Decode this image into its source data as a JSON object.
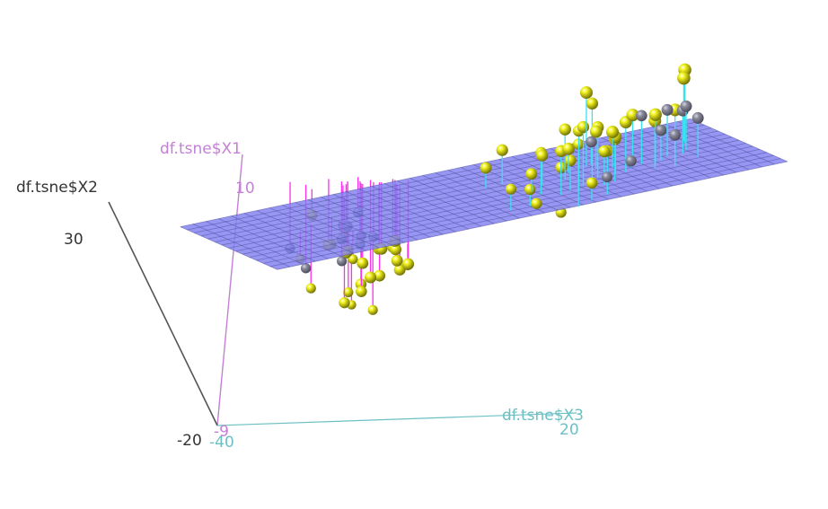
{
  "chart_data": {
    "type": "scatter3d",
    "axes": {
      "x1": {
        "label": "df.tsne$X1",
        "color": "#c47fd6",
        "ticks": [
          "10",
          "-9"
        ]
      },
      "x2": {
        "label": "df.tsne$X2",
        "color": "#333333",
        "ticks": [
          "30",
          "-20"
        ]
      },
      "x3": {
        "label": "df.tsne$X3",
        "color": "#6cc0c4",
        "ticks": [
          "20",
          "-40"
        ]
      }
    },
    "plane": {
      "color": "#8080f0",
      "gridColor": "#4b4b9a",
      "gridLines": [
        40,
        14
      ]
    },
    "colors": {
      "pointYellow": "#f2f21c",
      "pointGray": "#8a8a9a",
      "stemAbove": "#37e3ef",
      "stemBelow": "#ff2ef0",
      "stemPurple": "#9a3cf0"
    },
    "series": [
      {
        "name": "yellow points",
        "points": [
          [
            -14.2,
            13.5,
            3.0
          ],
          [
            -13.0,
            8.0,
            8.0
          ],
          [
            -12.2,
            14.0,
            6.0
          ],
          [
            -11.6,
            15.0,
            4.5
          ],
          [
            -12.8,
            6.0,
            2.0
          ],
          [
            -11.0,
            4.5,
            4.0
          ],
          [
            -11.2,
            11.0,
            5.0
          ],
          [
            -10.0,
            12.5,
            10.5
          ],
          [
            -10.2,
            2.0,
            6.0
          ],
          [
            -10.9,
            10.5,
            1.5
          ],
          [
            -8.5,
            7.0,
            -5.5
          ],
          [
            -7.7,
            -6.3,
            -2.4
          ],
          [
            -6.4,
            -4.9,
            -2.4
          ],
          [
            -6.2,
            -6.6,
            -2.7
          ],
          [
            -6.4,
            -1.7,
            -6.9
          ],
          [
            -5.7,
            -2.6,
            -5.5
          ],
          [
            -6.1,
            -2.0,
            -5.0
          ],
          [
            -5.2,
            -4.4,
            -4.3
          ],
          [
            -4.1,
            -7.6,
            -3.9
          ],
          [
            -4.3,
            -8.3,
            -4.8
          ],
          [
            -4.6,
            -1.9,
            -3.1
          ],
          [
            -4.0,
            -3.2,
            -3.8
          ],
          [
            -3.3,
            -6.6,
            -2.5
          ],
          [
            -3.4,
            -5.1,
            -2.7
          ],
          [
            -3.0,
            -4.3,
            -4.0
          ],
          [
            -2.3,
            -7.4,
            -3.1
          ],
          [
            -3.4,
            -3.4,
            -2.9
          ],
          [
            -3.0,
            -3.1,
            -3.7
          ],
          [
            -0.5,
            11.0,
            8.0
          ],
          [
            1.0,
            9.0,
            8.0
          ],
          [
            0.8,
            8.5,
            2.2
          ],
          [
            2.3,
            5.0,
            10.0
          ],
          [
            1.5,
            6.0,
            8.0
          ],
          [
            2.2,
            9.5,
            2.0
          ],
          [
            3.0,
            11.0,
            6.0
          ],
          [
            3.5,
            15.0,
            10.3
          ],
          [
            2.8,
            7.0,
            5.0
          ],
          [
            4.0,
            8.0,
            7.0
          ],
          [
            4.2,
            7.5,
            4.0
          ],
          [
            5.5,
            12.0,
            6.8
          ],
          [
            5.0,
            7.5,
            6.5
          ],
          [
            6.0,
            9.5,
            4.0
          ],
          [
            6.3,
            11.0,
            6.0
          ],
          [
            7.0,
            14.0,
            6.0
          ],
          [
            6.5,
            9.0,
            9.0
          ],
          [
            5.8,
            6.0,
            3.8
          ],
          [
            7.5,
            6.0,
            6.8
          ],
          [
            7.0,
            4.0,
            2.7
          ],
          [
            8.0,
            8.0,
            5.0
          ],
          [
            8.5,
            6.5,
            6.5
          ],
          [
            9.0,
            4.5,
            3.0
          ],
          [
            8.8,
            10.5,
            2.0
          ],
          [
            9.5,
            4.3,
            4.8
          ],
          [
            10.0,
            3.5,
            3.5
          ],
          [
            10.2,
            6.0,
            5.0
          ],
          [
            11.3,
            5.0,
            4.0
          ],
          [
            12.2,
            4.0,
            5.5
          ],
          [
            12.8,
            3.5,
            4.5
          ],
          [
            13.5,
            4.5,
            6.0
          ],
          [
            16.8,
            3.5,
            1.5
          ],
          [
            17.0,
            1.5,
            1.0
          ],
          [
            5.0,
            6.0,
            9.5
          ]
        ]
      },
      {
        "name": "gray points",
        "points": [
          [
            -7.0,
            -1.5,
            -4.0
          ],
          [
            -6.4,
            3.0,
            -4.9
          ],
          [
            -6.0,
            -0.5,
            -5.8
          ],
          [
            -5.7,
            1.5,
            -5.5
          ],
          [
            -5.2,
            0.0,
            -4.5
          ],
          [
            -5.0,
            -2.0,
            -5.0
          ],
          [
            -4.6,
            2.0,
            -6.0
          ],
          [
            -4.4,
            -1.0,
            -4.2
          ],
          [
            -8.8,
            0.0,
            -8.0
          ],
          [
            -8.3,
            -3.0,
            -6.7
          ],
          [
            8.0,
            0.7,
            6.3
          ],
          [
            9.3,
            1.5,
            1.8
          ],
          [
            11.0,
            -2.0,
            4.3
          ],
          [
            12.0,
            4.0,
            4.0
          ],
          [
            13.4,
            -0.1,
            4.2
          ],
          [
            14.0,
            -1.0,
            5.1
          ],
          [
            14.3,
            1.6,
            3.5
          ],
          [
            15.4,
            0.2,
            3.7
          ],
          [
            15.8,
            -0.5,
            5.1
          ],
          [
            16.0,
            -0.3,
            3.1
          ]
        ]
      }
    ]
  }
}
